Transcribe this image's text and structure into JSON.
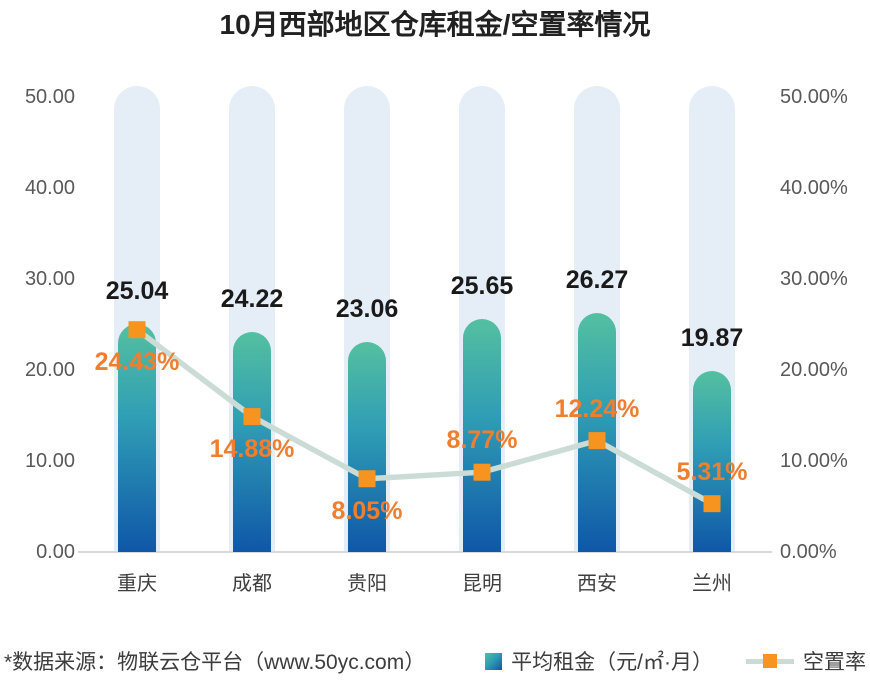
{
  "title": "10月西部地区仓库租金/空置率情况",
  "source_note": "*数据来源：物联云仓平台（www.50yc.com）",
  "legend": {
    "rent_label": "平均租金（元/㎡·月）",
    "vacancy_label": "空置率"
  },
  "colors": {
    "bar_gradient_top": "#54c0a0",
    "bar_gradient_mid": "#2f9db5",
    "bar_gradient_bottom": "#0f57a8",
    "column_bg": "#e5eef7",
    "line": "#cbdcd6",
    "marker": "#f6941f",
    "vacancy_label_text": "#ee7e30",
    "rent_label_text": "#1a1a1a",
    "axis_text": "#595959",
    "category_text": "#3f3f3f"
  },
  "chart_data": {
    "type": "bar",
    "subtype": "bar-line-combo",
    "title": "10月西部地区仓库租金/空置率情况",
    "categories": [
      "重庆",
      "成都",
      "贵阳",
      "昆明",
      "西安",
      "兰州"
    ],
    "series": [
      {
        "name": "平均租金（元/㎡·月）",
        "type": "bar",
        "axis": "left",
        "values": [
          25.04,
          24.22,
          23.06,
          25.65,
          26.27,
          19.87
        ],
        "data_labels": [
          "25.04",
          "24.22",
          "23.06",
          "25.65",
          "26.27",
          "19.87"
        ]
      },
      {
        "name": "空置率",
        "type": "line",
        "axis": "right",
        "values": [
          24.43,
          14.88,
          8.05,
          8.77,
          12.24,
          5.31
        ],
        "data_labels": [
          "24.43%",
          "14.88%",
          "8.05%",
          "8.77%",
          "12.24%",
          "5.31%"
        ],
        "label_placement": [
          "below",
          "below",
          "below",
          "above",
          "above",
          "above"
        ]
      }
    ],
    "left_axis": {
      "min": 0,
      "max": 50,
      "ticks": [
        "0.00",
        "10.00",
        "20.00",
        "30.00",
        "40.00",
        "50.00"
      ]
    },
    "right_axis": {
      "min": 0,
      "max": 50,
      "ticks": [
        "0.00%",
        "10.00%",
        "20.00%",
        "30.00%",
        "40.00%",
        "50.00%"
      ]
    },
    "grid": false,
    "legend_position": "bottom-right"
  }
}
